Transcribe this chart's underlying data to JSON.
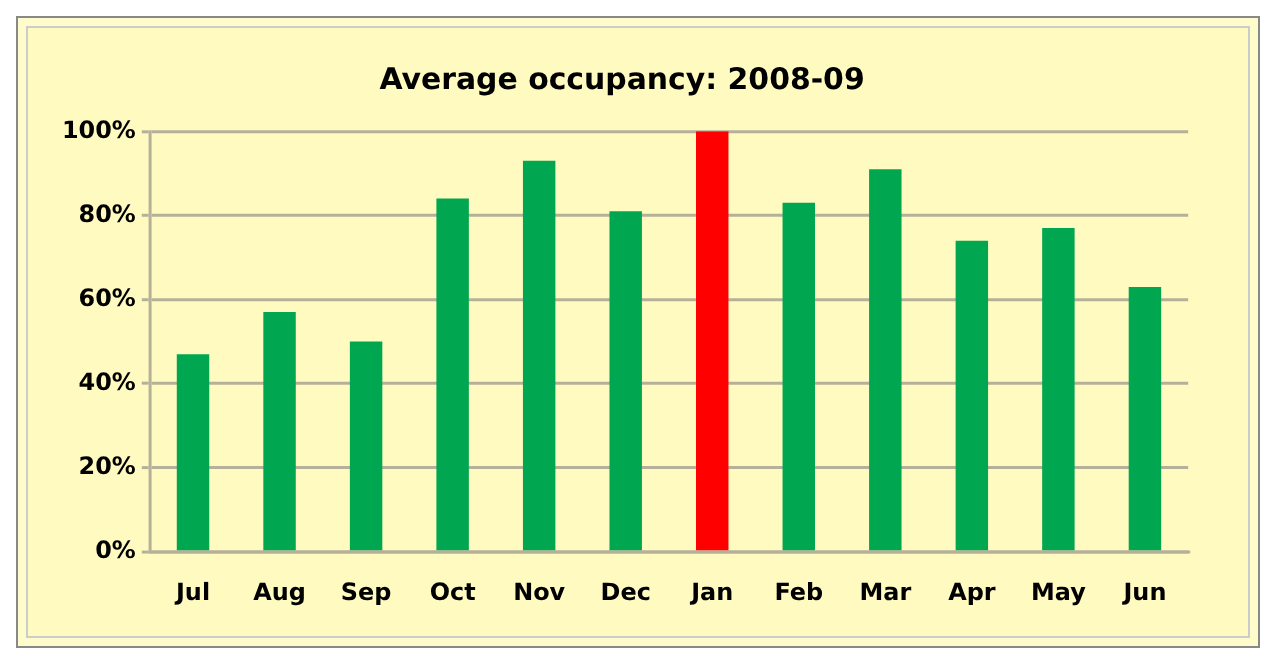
{
  "chart_data": {
    "type": "bar",
    "title": "Average occupancy: 2008-09",
    "categories": [
      "Jul",
      "Aug",
      "Sep",
      "Oct",
      "Nov",
      "Dec",
      "Jan",
      "Feb",
      "Mar",
      "Apr",
      "May",
      "Jun"
    ],
    "values": [
      47,
      57,
      50,
      84,
      93,
      81,
      100,
      83,
      91,
      74,
      77,
      63
    ],
    "colors": [
      "#00a650",
      "#00a650",
      "#00a650",
      "#00a650",
      "#00a650",
      "#00a650",
      "#ff0000",
      "#00a650",
      "#00a650",
      "#00a650",
      "#00a650",
      "#00a650"
    ],
    "ylim": [
      0,
      100
    ],
    "yticks": [
      {
        "value": 0,
        "label": "0%"
      },
      {
        "value": 20,
        "label": "20%"
      },
      {
        "value": 40,
        "label": "40%"
      },
      {
        "value": 60,
        "label": "60%"
      },
      {
        "value": 80,
        "label": "80%"
      },
      {
        "value": 100,
        "label": "100%"
      }
    ],
    "grid": "y",
    "legend": false
  }
}
